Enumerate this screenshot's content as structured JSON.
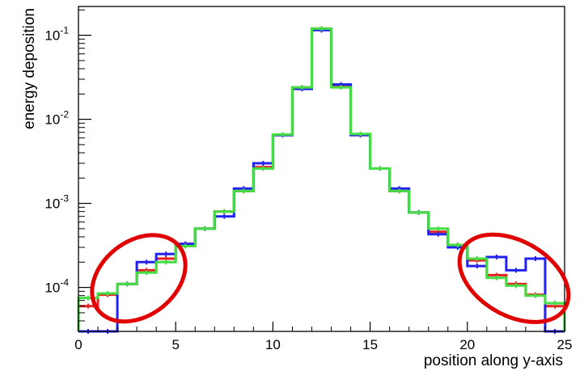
{
  "chart_data": {
    "type": "step-histogram",
    "xlabel": "position along y-axis",
    "ylabel": "energy deposition",
    "xlim": [
      0,
      25
    ],
    "ylim": [
      3e-05,
      0.22
    ],
    "yscale": "log",
    "grid": false,
    "x_ticks": [
      {
        "v": 0,
        "label": "0"
      },
      {
        "v": 5,
        "label": "5"
      },
      {
        "v": 10,
        "label": "10"
      },
      {
        "v": 15,
        "label": "15"
      },
      {
        "v": 20,
        "label": "20"
      },
      {
        "v": 25,
        "label": "25"
      }
    ],
    "y_ticks": [
      {
        "v": 0.0001,
        "base": "10",
        "exp": "-4"
      },
      {
        "v": 0.001,
        "base": "10",
        "exp": "-3"
      },
      {
        "v": 0.01,
        "base": "10",
        "exp": "-2"
      },
      {
        "v": 0.1,
        "base": "10",
        "exp": "-1"
      }
    ],
    "bin_edges": [
      0,
      1,
      2,
      3,
      4,
      5,
      6,
      7,
      8,
      9,
      10,
      11,
      12,
      13,
      14,
      15,
      16,
      17,
      18,
      19,
      20,
      21,
      22,
      23,
      24,
      25
    ],
    "series": [
      {
        "color": "#e82020",
        "values": [
          6e-05,
          8.2e-05,
          0.00011,
          0.00016,
          0.00022,
          0.00033,
          0.0005,
          0.0008,
          0.0014,
          0.0027,
          0.0065,
          0.024,
          0.12,
          0.025,
          0.0065,
          0.0026,
          0.0014,
          0.00078,
          0.00046,
          0.00032,
          0.00021,
          0.00014,
          0.00011,
          8.2e-05,
          6e-05
        ]
      },
      {
        "color": "#2222ee",
        "values": [
          3e-05,
          3e-05,
          0.00011,
          0.0002,
          0.00025,
          0.00033,
          0.0005,
          0.0007,
          0.0015,
          0.003,
          0.0065,
          0.023,
          0.115,
          0.026,
          0.0065,
          0.0026,
          0.0015,
          0.00078,
          0.00043,
          0.0003,
          0.00018,
          0.00023,
          0.00016,
          0.00022,
          3e-05
        ]
      },
      {
        "color": "#44dd44",
        "values": [
          7.5e-05,
          8.5e-05,
          0.00011,
          0.00015,
          0.0002,
          0.00031,
          0.0005,
          0.0008,
          0.0014,
          0.0026,
          0.0066,
          0.024,
          0.12,
          0.024,
          0.0067,
          0.0026,
          0.0014,
          0.00078,
          0.0005,
          0.00032,
          0.00022,
          0.00013,
          0.000105,
          8e-05,
          6.5e-05
        ]
      }
    ],
    "annotations": [
      {
        "type": "ellipse",
        "color": "#e00000",
        "x_range": [
          -0.3,
          6.5
        ],
        "y_range": [
          2.2e-05,
          0.00075
        ],
        "angle": -38
      },
      {
        "type": "ellipse",
        "color": "#e00000",
        "x_range": [
          18.5,
          26.3
        ],
        "y_range": [
          2.2e-05,
          0.00075
        ],
        "angle": 30
      }
    ]
  }
}
